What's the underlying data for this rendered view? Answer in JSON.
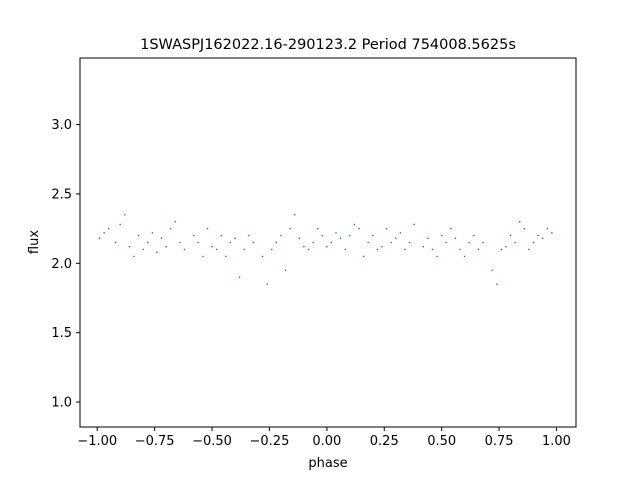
{
  "chart_data": {
    "type": "scatter",
    "title": "1SWASPJ162022.16-290123.2 Period 754008.5625s",
    "xlabel": "phase",
    "ylabel": "flux",
    "xlim": [
      -1.075,
      1.085
    ],
    "ylim": [
      0.82,
      3.48
    ],
    "x_ticks": [
      -1.0,
      -0.75,
      -0.5,
      -0.25,
      0.0,
      0.25,
      0.5,
      0.75,
      1.0
    ],
    "x_tick_labels": [
      "−1.00",
      "−0.75",
      "−0.50",
      "−0.25",
      "0.00",
      "0.25",
      "0.50",
      "0.75",
      "1.00"
    ],
    "y_ticks": [
      1.0,
      1.5,
      2.0,
      2.5,
      3.0
    ],
    "y_tick_labels": [
      "1.0",
      "1.5",
      "2.0",
      "2.5",
      "3.0"
    ],
    "grid": false,
    "legend": "none",
    "marker_color": "#1f77b4",
    "series": [
      {
        "name": "",
        "x": [
          -0.99,
          -0.97,
          -0.95,
          -0.92,
          -0.9,
          -0.88,
          -0.86,
          -0.84,
          -0.82,
          -0.8,
          -0.78,
          -0.76,
          -0.74,
          -0.72,
          -0.7,
          -0.68,
          -0.66,
          -0.64,
          -0.62,
          -0.58,
          -0.56,
          -0.54,
          -0.52,
          -0.5,
          -0.48,
          -0.46,
          -0.44,
          -0.42,
          -0.4,
          -0.38,
          -0.36,
          -0.34,
          -0.32,
          -0.28,
          -0.26,
          -0.24,
          -0.22,
          -0.2,
          -0.18,
          -0.16,
          -0.14,
          -0.12,
          -0.1,
          -0.08,
          -0.06,
          -0.04,
          -0.02,
          0.0,
          0.02,
          0.04,
          0.06,
          0.08,
          0.1,
          0.12,
          0.14,
          0.16,
          0.18,
          0.2,
          0.22,
          0.24,
          0.26,
          0.28,
          0.3,
          0.32,
          0.34,
          0.36,
          0.38,
          0.42,
          0.44,
          0.46,
          0.48,
          0.5,
          0.52,
          0.54,
          0.56,
          0.58,
          0.6,
          0.62,
          0.64,
          0.66,
          0.68,
          0.72,
          0.74,
          0.76,
          0.78,
          0.8,
          0.82,
          0.84,
          0.86,
          0.88,
          0.9,
          0.92,
          0.94,
          0.96,
          0.98
        ],
        "y": [
          2.18,
          2.22,
          2.25,
          2.15,
          2.28,
          2.35,
          2.12,
          2.05,
          2.2,
          2.1,
          2.15,
          2.22,
          2.08,
          2.18,
          2.12,
          2.25,
          2.3,
          2.15,
          2.1,
          2.2,
          2.15,
          2.05,
          2.25,
          2.12,
          2.1,
          2.2,
          2.05,
          2.15,
          2.18,
          1.9,
          2.1,
          2.2,
          2.15,
          2.05,
          1.85,
          2.1,
          2.15,
          2.2,
          1.95,
          2.25,
          2.35,
          2.18,
          2.12,
          2.1,
          2.15,
          2.25,
          2.2,
          2.12,
          2.15,
          2.22,
          2.18,
          2.1,
          2.2,
          2.28,
          2.25,
          2.05,
          2.15,
          2.2,
          2.1,
          2.12,
          2.25,
          2.15,
          2.18,
          2.22,
          2.1,
          2.15,
          2.28,
          2.12,
          2.18,
          2.1,
          2.05,
          2.2,
          2.15,
          2.25,
          2.18,
          2.1,
          2.05,
          2.15,
          2.2,
          2.1,
          2.15,
          1.95,
          1.85,
          2.1,
          2.12,
          2.2,
          2.15,
          2.3,
          2.25,
          2.1,
          2.15,
          2.2,
          2.18,
          2.25,
          2.22
        ]
      }
    ]
  }
}
